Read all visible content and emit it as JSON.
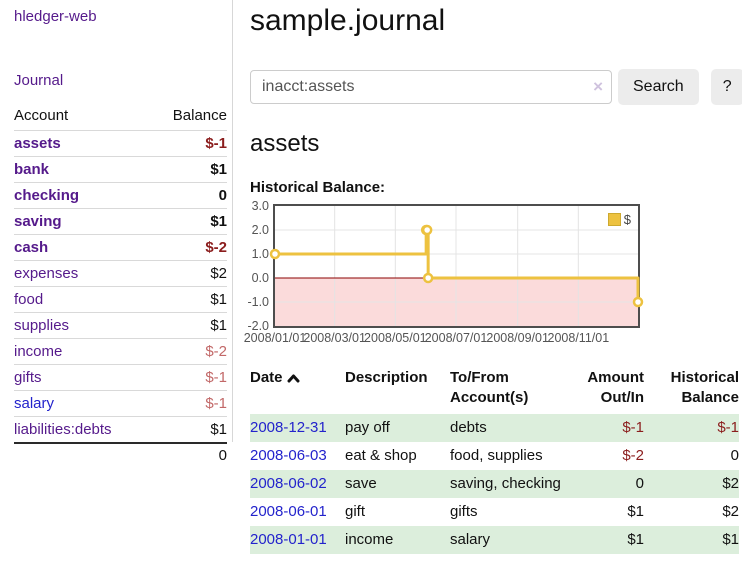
{
  "sidebar": {
    "app_title": "hledger-web",
    "journal_link": "Journal",
    "accounts": {
      "headers": {
        "account": "Account",
        "balance": "Balance"
      },
      "rows": [
        {
          "name": "assets",
          "balance": "$-1"
        },
        {
          "name": "bank",
          "balance": "$1"
        },
        {
          "name": "checking",
          "balance": "0"
        },
        {
          "name": "saving",
          "balance": "$1"
        },
        {
          "name": "cash",
          "balance": "$-2"
        },
        {
          "name": "expenses",
          "balance": "$2"
        },
        {
          "name": "food",
          "balance": "$1"
        },
        {
          "name": "supplies",
          "balance": "$1"
        },
        {
          "name": "income",
          "balance": "$-2"
        },
        {
          "name": "gifts",
          "balance": "$-1"
        },
        {
          "name": "salary",
          "balance": "$-1"
        },
        {
          "name": "liabilities:debts",
          "balance": "$1"
        }
      ],
      "total": "0"
    }
  },
  "main": {
    "title": "sample.journal",
    "search": {
      "value": "inacct:assets",
      "clear_icon": "×",
      "search_button": "Search",
      "help_button": "?"
    },
    "account_heading": "assets",
    "chart_heading": "Historical Balance:"
  },
  "chart_data": {
    "type": "line",
    "step": true,
    "title": "Historical Balance",
    "series": [
      {
        "name": "$",
        "color": "#edc240",
        "points": [
          [
            "2008-01-01",
            1.0
          ],
          [
            "2008-06-01",
            2.0
          ],
          [
            "2008-06-02",
            2.0
          ],
          [
            "2008-06-03",
            0.0
          ],
          [
            "2008-12-31",
            -1.0
          ]
        ]
      }
    ],
    "xlim": [
      "2008-01-01",
      "2008-12-31"
    ],
    "ylim": [
      -2.0,
      3.0
    ],
    "yticks": [
      {
        "v": 3,
        "label": "3.0"
      },
      {
        "v": 2,
        "label": "2.0"
      },
      {
        "v": 1,
        "label": "1.0"
      },
      {
        "v": 0,
        "label": "0.0"
      },
      {
        "v": -1,
        "label": "-1.0"
      },
      {
        "v": -2,
        "label": "-2.0"
      }
    ],
    "xticks": [
      {
        "v": "2008-01-01",
        "label": "2008/01/01"
      },
      {
        "v": "2008-03-01",
        "label": "2008/03/01"
      },
      {
        "v": "2008-05-01",
        "label": "2008/05/01"
      },
      {
        "v": "2008-07-01",
        "label": "2008/07/01"
      },
      {
        "v": "2008-09-01",
        "label": "2008/09/01"
      },
      {
        "v": "2008-11-01",
        "label": "2008/11/01"
      }
    ],
    "grid": true,
    "legend_position": "top-right",
    "negative_region_color": "#fbdbdb",
    "zero_line_color": "#8b0000",
    "grid_color": "#e4e4e4"
  },
  "register": {
    "headers": {
      "date": "Date",
      "description": "Description",
      "accounts": "To/From Account(s)",
      "amount": "Amount Out/In",
      "balance": "Historical Balance"
    },
    "rows": [
      {
        "date": "2008-12-31",
        "description": "pay off",
        "accounts": "debts",
        "amount": "$-1",
        "balance": "$-1"
      },
      {
        "date": "2008-06-03",
        "description": "eat & shop",
        "accounts": "food, supplies",
        "amount": "$-2",
        "balance": "0"
      },
      {
        "date": "2008-06-02",
        "description": "save",
        "accounts": "saving, checking",
        "amount": "0",
        "balance": "$2"
      },
      {
        "date": "2008-06-01",
        "description": "gift",
        "accounts": "gifts",
        "amount": "$1",
        "balance": "$2"
      },
      {
        "date": "2008-01-01",
        "description": "income",
        "accounts": "salary",
        "amount": "$1",
        "balance": "$1"
      }
    ]
  }
}
